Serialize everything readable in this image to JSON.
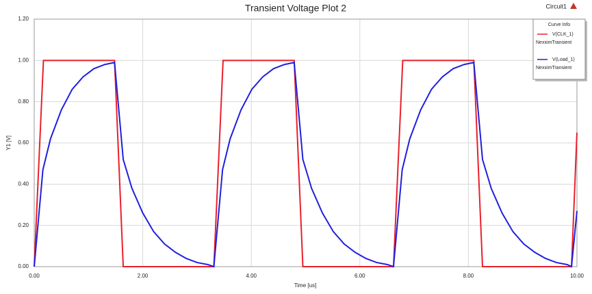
{
  "chart_data": {
    "type": "line",
    "title": "Transient Voltage Plot 2",
    "corner_label": "Circuit1",
    "legend_title": "Curve Info",
    "xlabel": "Time [us]",
    "ylabel": "Y1 [V]",
    "xlim": [
      0,
      10
    ],
    "ylim": [
      0,
      1.2
    ],
    "xticks": [
      {
        "value": 0,
        "label": "0.00"
      },
      {
        "value": 2,
        "label": "2.00"
      },
      {
        "value": 4,
        "label": "4.00"
      },
      {
        "value": 6,
        "label": "6.00"
      },
      {
        "value": 8,
        "label": "8.00"
      },
      {
        "value": 10,
        "label": "10.00"
      }
    ],
    "yticks": [
      {
        "value": 0,
        "label": "0.00"
      },
      {
        "value": 0.2,
        "label": "0.20"
      },
      {
        "value": 0.4,
        "label": "0.40"
      },
      {
        "value": 0.6,
        "label": "0.60"
      },
      {
        "value": 0.8,
        "label": "0.80"
      },
      {
        "value": 1,
        "label": "1.00"
      },
      {
        "value": 1.2,
        "label": "1.20"
      }
    ],
    "grid": true,
    "legend": "upper right",
    "series": [
      {
        "name": "V(CLK_1)",
        "source": "NexximTransient",
        "color": "#e8202a",
        "x": [
          0,
          0.17,
          1.48,
          1.64,
          3.31,
          3.48,
          4.79,
          4.95,
          6.62,
          6.79,
          8.1,
          8.26,
          9.9,
          10
        ],
        "values": [
          0,
          1,
          1,
          0,
          0,
          1,
          1,
          0,
          0,
          1,
          1,
          0,
          0,
          0.65
        ]
      },
      {
        "name": "V(Load_1)",
        "source": "NexximTransient",
        "color": "#1f1fe0",
        "x": [
          0,
          0.16,
          0.3,
          0.5,
          0.7,
          0.9,
          1.1,
          1.3,
          1.48,
          1.64,
          1.8,
          2.0,
          2.2,
          2.4,
          2.6,
          2.8,
          3.0,
          3.2,
          3.31,
          3.47,
          3.61,
          3.81,
          4.01,
          4.21,
          4.41,
          4.61,
          4.79,
          4.95,
          5.11,
          5.31,
          5.51,
          5.71,
          5.91,
          6.11,
          6.31,
          6.51,
          6.62,
          6.78,
          6.92,
          7.12,
          7.32,
          7.52,
          7.72,
          7.92,
          8.1,
          8.26,
          8.42,
          8.62,
          8.82,
          9.02,
          9.22,
          9.42,
          9.62,
          9.82,
          9.9,
          10
        ],
        "values": [
          0,
          0.47,
          0.62,
          0.76,
          0.86,
          0.92,
          0.96,
          0.98,
          0.99,
          0.52,
          0.38,
          0.26,
          0.17,
          0.11,
          0.07,
          0.04,
          0.02,
          0.01,
          0,
          0.47,
          0.62,
          0.76,
          0.86,
          0.92,
          0.96,
          0.98,
          0.99,
          0.52,
          0.38,
          0.26,
          0.17,
          0.11,
          0.07,
          0.04,
          0.02,
          0.01,
          0,
          0.47,
          0.62,
          0.76,
          0.86,
          0.92,
          0.96,
          0.98,
          0.99,
          0.52,
          0.38,
          0.26,
          0.17,
          0.11,
          0.07,
          0.04,
          0.02,
          0.01,
          0,
          0.27
        ]
      }
    ]
  }
}
